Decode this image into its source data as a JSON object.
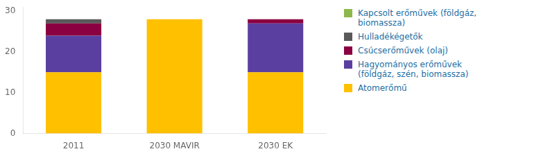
{
  "chart_data": {
    "type": "bar",
    "stacked": true,
    "categories": [
      "2011",
      "2030 MAVIR",
      "2030 EK"
    ],
    "series": [
      {
        "name": "Atomerőmű",
        "color": "#FFC000",
        "values": [
          15,
          28,
          15
        ]
      },
      {
        "name": "Hagyományos erőművek\n(földgáz, szén, biomassza)",
        "color": "#5B3FA0",
        "values": [
          9,
          0,
          12
        ]
      },
      {
        "name": "Csúcserőművek (olaj)",
        "color": "#8B0040",
        "values": [
          3,
          0,
          1
        ]
      },
      {
        "name": "Hulladékégetők",
        "color": "#595959",
        "values": [
          1,
          0,
          0
        ]
      },
      {
        "name": "Kapcsolt erőművek (földgáz,\nbiomassza)",
        "color": "#8DB84A",
        "values": [
          0,
          0,
          0
        ]
      }
    ],
    "ylim": [
      0,
      31
    ],
    "yticks": [
      0,
      10,
      20,
      30
    ],
    "grid": false,
    "legend": "right"
  }
}
